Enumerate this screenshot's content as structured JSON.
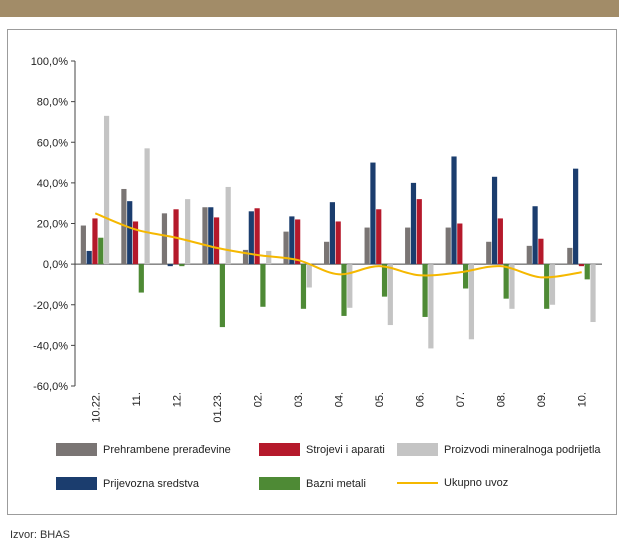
{
  "source": "Izvor: BHAS",
  "chart_data": {
    "type": "bar",
    "categories": [
      "10.22.",
      "11.",
      "12.",
      "01.23.",
      "02.",
      "03.",
      "04.",
      "05.",
      "06.",
      "07.",
      "08.",
      "09.",
      "10."
    ],
    "ylim": [
      -60,
      100
    ],
    "yticks": [
      -60,
      -40,
      -20,
      0,
      20,
      40,
      60,
      80,
      100
    ],
    "ytick_labels": [
      "-60,0%",
      "-40,0%",
      "-20,0%",
      "0,0%",
      "20,0%",
      "40,0%",
      "60,0%",
      "80,0%",
      "100,0%"
    ],
    "series": [
      {
        "name": "Prehrambene prerađevine",
        "type": "bar",
        "color": "#7a7574",
        "values": [
          19,
          37,
          25,
          28,
          7,
          16,
          11,
          18,
          18,
          18,
          11,
          9,
          8
        ]
      },
      {
        "name": "Prijevozna sredstva",
        "type": "bar",
        "color": "#1b3d6e",
        "values": [
          6.5,
          31,
          -1,
          28,
          26,
          23.5,
          30.5,
          50,
          40,
          53,
          43,
          28.5,
          47
        ]
      },
      {
        "name": "Strojevi i aparati",
        "type": "bar",
        "color": "#b5192b",
        "values": [
          22.5,
          21,
          27,
          23,
          27.5,
          22,
          21,
          27,
          32,
          20,
          22.5,
          12.5,
          -1
        ]
      },
      {
        "name": "Bazni metali",
        "type": "bar",
        "color": "#4e8a35",
        "values": [
          13,
          -14,
          -1,
          -31,
          -21,
          -22,
          -25.5,
          -16,
          -26,
          -12,
          -17,
          -22,
          -7.5
        ]
      },
      {
        "name": "Proizvodi mineralnoga podrijetla",
        "type": "bar",
        "color": "#c4c4c4",
        "values": [
          73,
          57,
          32,
          38,
          6.5,
          -11.5,
          -21.5,
          -30,
          -41.5,
          -37,
          -22,
          -20,
          -28.5
        ]
      },
      {
        "name": "Ukupno uvoz",
        "type": "line",
        "color": "#f5b800",
        "values": [
          25,
          17,
          13,
          8,
          4.5,
          2,
          -5,
          -1,
          -5.5,
          -4,
          -1,
          -6.5,
          -4
        ]
      }
    ],
    "legend_position": "bottom",
    "grid": false
  }
}
